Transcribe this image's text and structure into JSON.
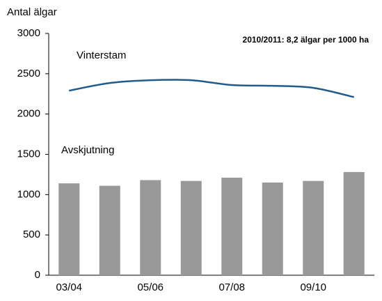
{
  "chart_data": {
    "type": "bar_line",
    "y_axis_label": "Antal älgar",
    "annotations": [
      "2010/2011: 8,2 älgar per 1000 ha",
      "Vinterstam",
      "Avskjutning"
    ],
    "categories": [
      "03/04",
      null,
      "05/06",
      null,
      "07/08",
      null,
      "09/10",
      null
    ],
    "series": [
      {
        "name": "Avskjutning",
        "type": "bar",
        "color": "#999999",
        "values": [
          1140,
          1110,
          1180,
          1170,
          1210,
          1150,
          1170,
          1280
        ]
      },
      {
        "name": "Vinterstam",
        "type": "line",
        "color": "#1f5c8b",
        "values": [
          2290,
          2385,
          2420,
          2420,
          2360,
          2350,
          2325,
          2210
        ]
      }
    ],
    "ylim": [
      0,
      3000
    ],
    "yticks": [
      0,
      500,
      1000,
      1500,
      2000,
      2500,
      3000
    ],
    "grid": false
  }
}
